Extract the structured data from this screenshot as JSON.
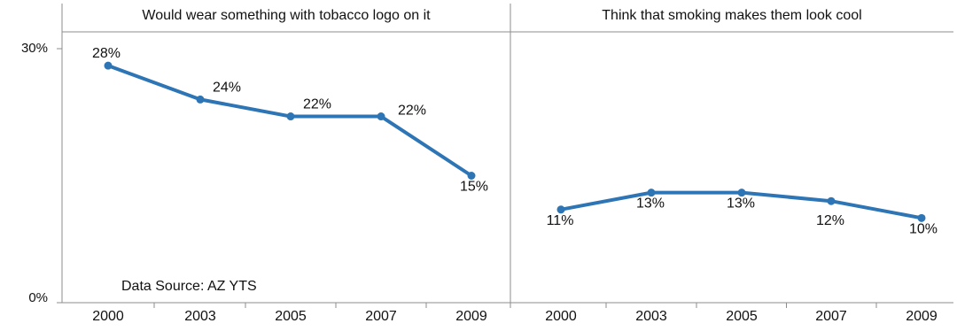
{
  "colors": {
    "line": "#2e75b6",
    "axis": "#8c8c8c",
    "text": "#111111"
  },
  "y_axis": {
    "ticks": [
      "30%",
      "0%"
    ]
  },
  "source_note": "Data Source: AZ YTS",
  "chart_data": [
    {
      "type": "line",
      "title": "Would wear something with tobacco logo on it",
      "x": [
        "2000",
        "2003",
        "2005",
        "2007",
        "2009"
      ],
      "values": [
        28,
        24,
        22,
        22,
        15
      ],
      "data_labels": [
        "28%",
        "24%",
        "22%",
        "22%",
        "15%"
      ],
      "ylim": [
        0,
        30
      ],
      "grid": false
    },
    {
      "type": "line",
      "title": "Think that smoking makes them look cool",
      "x": [
        "2000",
        "2003",
        "2005",
        "2007",
        "2009"
      ],
      "values": [
        11,
        13,
        13,
        12,
        10
      ],
      "data_labels": [
        "11%",
        "13%",
        "13%",
        "12%",
        "10%"
      ],
      "ylim": [
        0,
        30
      ],
      "grid": false
    }
  ]
}
